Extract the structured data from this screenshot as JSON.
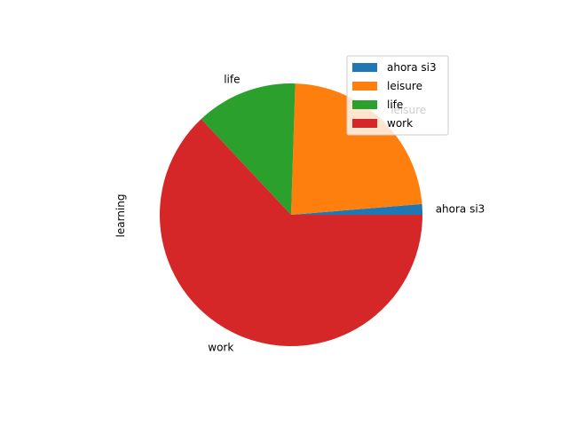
{
  "chart_data": {
    "type": "pie",
    "ylabel": "learning",
    "categories": [
      "ahora si3",
      "leisure",
      "life",
      "work"
    ],
    "values": [
      1.3,
      23.2,
      12.5,
      63.0
    ],
    "colors": [
      "#1f77b4",
      "#ff7f0e",
      "#2ca02c",
      "#d62728"
    ],
    "start_angle_deg": 0,
    "direction": "counterclockwise",
    "legend": {
      "placement": "upper-right",
      "entries": [
        "ahora si3",
        "leisure",
        "life",
        "work"
      ]
    }
  }
}
